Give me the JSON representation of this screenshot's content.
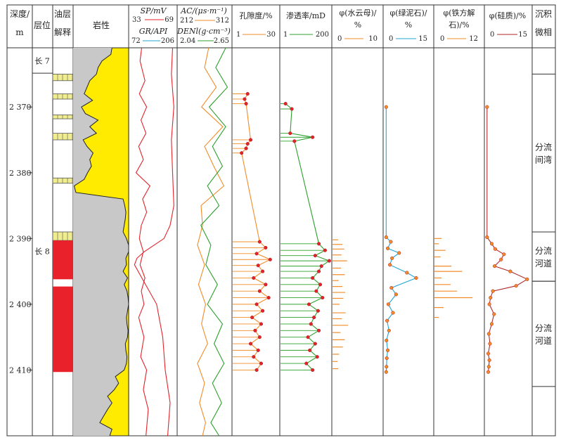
{
  "headers": {
    "depth": [
      "深度/",
      "m"
    ],
    "layer": "层位",
    "oil": [
      "油层",
      "解释"
    ],
    "lith": "岩性",
    "sp_title": "SP/mV",
    "sp_min": "33",
    "sp_max": "69",
    "gr_title": "GR/API",
    "gr_min": "72",
    "gr_max": "206",
    "ac_title": "AC/(μs·m⁻¹)",
    "ac_min": "212",
    "ac_max": "312",
    "den_title": "DENl(g·cm⁻³)",
    "den_min": "2.04",
    "den_max": "2.65",
    "por_title": "孔隙度/%",
    "por_min": "1",
    "por_max": "30",
    "perm_title": "渗透率/mD",
    "perm_min": "1",
    "perm_max": "200",
    "bio_title": [
      "φ(水云母)/",
      "%"
    ],
    "bio_min": "0",
    "bio_max": "10",
    "chl_title": [
      "φ(绿泥石)/",
      "%"
    ],
    "chl_min": "0",
    "chl_max": "15",
    "cal_title": [
      "φ(铁方解",
      "石)/%"
    ],
    "cal_min": "0",
    "cal_max": "12",
    "sil_title": "φ(硅质)/%",
    "sil_min": "0",
    "sil_max": "15",
    "fac": [
      "沉积",
      "微相"
    ]
  },
  "layers": [
    {
      "name": "长 7",
      "top": 2362.0,
      "bottom": 2364.0
    },
    {
      "name": "长 8",
      "top": 2391.0,
      "bottom": 2420.0
    }
  ],
  "facies": [
    {
      "lines": [
        "分流",
        "间湾"
      ],
      "top": 2365.0,
      "bottom": 2389.0
    },
    {
      "lines": [
        "分流",
        "河道"
      ],
      "top": 2389.0,
      "bottom": 2396.5
    },
    {
      "lines": [
        "分流",
        "河道"
      ],
      "top": 2396.5,
      "bottom": 2412.5
    }
  ],
  "colors": {
    "sp": "#e2232b",
    "gr": "#22a6d6",
    "ac": "#f28c28",
    "den": "#2ca02c",
    "por": "#f28c28",
    "perm": "#2ca02c",
    "bio": "#f28c28",
    "chl": "#22a6d6",
    "cal": "#f28c28",
    "sil": "#b02a2a",
    "sand": "#ffeb00",
    "shale": "#c8c8c8",
    "oil_red": "#e8212a",
    "oil_yellow": "#f0ec90",
    "dot": "#e2232b"
  },
  "chart_data": {
    "type": "well-log",
    "depth_axis": {
      "label": "深度/m",
      "range": [
        2361,
        2420
      ],
      "ticks": [
        2370,
        2380,
        2390,
        2400,
        2410
      ],
      "tick_labels": [
        "2 370",
        "2 380",
        "2 390",
        "2 400",
        "2 410"
      ]
    },
    "oil_intervals": [
      {
        "type": "yellow",
        "top": 2365.0,
        "bottom": 2366.0
      },
      {
        "type": "yellow",
        "top": 2368.0,
        "bottom": 2368.8
      },
      {
        "type": "yellow",
        "top": 2371.2,
        "bottom": 2371.8
      },
      {
        "type": "yellow",
        "top": 2374.0,
        "bottom": 2375.0
      },
      {
        "type": "yellow",
        "top": 2380.8,
        "bottom": 2381.6
      },
      {
        "type": "yellow",
        "top": 2389.0,
        "bottom": 2390.3
      },
      {
        "type": "red",
        "top": 2390.3,
        "bottom": 2396.2
      },
      {
        "type": "red",
        "top": 2397.3,
        "bottom": 2410.3
      }
    ],
    "lithology": {
      "depth": [
        2361,
        2362,
        2363,
        2364,
        2365,
        2366,
        2367,
        2368,
        2369,
        2370,
        2371,
        2372,
        2373,
        2374,
        2375,
        2376,
        2377,
        2378,
        2379,
        2380,
        2381,
        2382,
        2383,
        2384,
        2385,
        2386,
        2387,
        2388,
        2389,
        2390,
        2391,
        2392,
        2393,
        2394,
        2395,
        2396,
        2397,
        2398,
        2399,
        2400,
        2401,
        2402,
        2403,
        2404,
        2405,
        2406,
        2407,
        2408,
        2409,
        2410,
        2411,
        2412,
        2413,
        2414,
        2415,
        2416,
        2417,
        2418,
        2419,
        2420
      ],
      "sand_fraction": [
        0.7,
        0.68,
        0.52,
        0.45,
        0.42,
        0.3,
        0.25,
        0.2,
        0.35,
        0.15,
        0.22,
        0.45,
        0.3,
        0.42,
        0.18,
        0.25,
        0.36,
        0.3,
        0.33,
        0.26,
        0.2,
        0.02,
        0.05,
        0.9,
        0.93,
        0.95,
        0.94,
        0.92,
        0.9,
        0.96,
        1.0,
        1.0,
        0.95,
        0.96,
        0.9,
        0.98,
        0.92,
        0.97,
        0.99,
        1.0,
        0.98,
        0.96,
        0.97,
        0.99,
        0.98,
        0.94,
        0.95,
        0.97,
        0.96,
        0.92,
        0.76,
        0.82,
        0.74,
        0.62,
        0.7,
        0.62,
        0.55,
        0.48,
        0.7,
        0.66
      ]
    },
    "curves": [
      {
        "name": "SP",
        "unit": "mV",
        "range": [
          33,
          69
        ],
        "depth": [
          2361,
          2365,
          2370,
          2375,
          2380,
          2385,
          2388,
          2390,
          2391,
          2392,
          2393,
          2394,
          2396,
          2400,
          2405,
          2410,
          2415,
          2420
        ],
        "values": [
          67,
          66,
          68,
          66,
          67,
          68,
          65,
          60,
          52,
          44,
          38,
          36,
          42,
          54,
          59,
          61,
          65,
          63
        ]
      },
      {
        "name": "GR",
        "unit": "API",
        "range": [
          72,
          206
        ],
        "depth": [
          2361,
          2363,
          2366,
          2368,
          2370,
          2372,
          2374,
          2376,
          2378,
          2380,
          2382,
          2384,
          2386,
          2388,
          2390,
          2392,
          2394,
          2396,
          2398,
          2400,
          2402,
          2405,
          2408,
          2410,
          2413,
          2416,
          2420
        ],
        "values": [
          105,
          100,
          115,
          98,
          120,
          103,
          118,
          96,
          110,
          88,
          130,
          108,
          120,
          104,
          98,
          110,
          100,
          115,
          104,
          112,
          96,
          112,
          102,
          120,
          110,
          125,
          118
        ]
      },
      {
        "name": "AC",
        "unit": "μs·m⁻¹",
        "range": [
          212,
          312
        ],
        "depth": [
          2361,
          2364,
          2367,
          2370,
          2373,
          2376,
          2379,
          2382,
          2385,
          2388,
          2391,
          2394,
          2397,
          2400,
          2403,
          2406,
          2409,
          2412,
          2415,
          2418,
          2420
        ],
        "values": [
          270,
          262,
          285,
          256,
          298,
          262,
          280,
          300,
          255,
          258,
          248,
          262,
          250,
          264,
          256,
          268,
          248,
          262,
          252,
          264,
          258
        ]
      },
      {
        "name": "DEN",
        "unit": "g·cm⁻³",
        "range": [
          2.04,
          2.65
        ],
        "depth": [
          2361,
          2364,
          2367,
          2370,
          2373,
          2376,
          2379,
          2382,
          2385,
          2388,
          2391,
          2394,
          2397,
          2400,
          2403,
          2406,
          2409,
          2412,
          2415,
          2418,
          2420
        ],
        "values": [
          2.6,
          2.48,
          2.62,
          2.4,
          2.6,
          2.44,
          2.56,
          2.38,
          2.52,
          2.3,
          2.42,
          2.36,
          2.5,
          2.38,
          2.56,
          2.46,
          2.58,
          2.44,
          2.55,
          2.42,
          2.52
        ]
      },
      {
        "name": "孔隙度",
        "unit": "%",
        "range": [
          1,
          30
        ],
        "markers": true,
        "depth": [
          2368.0,
          2368.8,
          2369.5,
          2375.0,
          2375.6,
          2376.3,
          2377.0,
          2390.5,
          2391.4,
          2392.3,
          2393.2,
          2394.1,
          2395.0,
          2396.0,
          2397.0,
          2398.0,
          2399.0,
          2400.0,
          2401.0,
          2402.0,
          2403.0,
          2404.0,
          2405.0,
          2406.0,
          2407.0,
          2408.0,
          2409.0,
          2410.0
        ],
        "values": [
          10,
          8,
          9,
          12,
          10,
          9,
          6,
          18,
          22,
          16,
          25,
          17,
          20,
          14,
          22,
          18,
          24,
          16,
          20,
          13,
          19,
          15,
          18,
          12,
          17,
          14,
          19,
          16
        ]
      },
      {
        "name": "渗透率",
        "unit": "mD",
        "range": [
          1,
          200
        ],
        "log": true,
        "markers": true,
        "depth": [
          2369.5,
          2370.3,
          2374.0,
          2374.6,
          2375.2,
          2390.8,
          2391.8,
          2392.6,
          2393.4,
          2394.2,
          2395.0,
          2396.0,
          2397.0,
          2398.0,
          2399.0,
          2400.0,
          2401.0,
          2402.0,
          2403.0,
          2404.0,
          2405.0,
          2406.0,
          2407.0,
          2408.0,
          2409.0,
          2410.0
        ],
        "values": [
          1.5,
          3,
          2.5,
          30,
          4,
          60,
          120,
          40,
          190,
          80,
          60,
          30,
          70,
          45,
          90,
          20,
          55,
          35,
          25,
          60,
          18,
          40,
          22,
          50,
          15,
          30
        ]
      },
      {
        "name": "水云母",
        "unit": "%",
        "range": [
          0,
          10
        ],
        "bars": true,
        "depth": [
          2390.2,
          2390.9,
          2391.6,
          2392.5,
          2393.4,
          2394.5,
          2395.5,
          2396.4,
          2397.3,
          2398.2,
          2399.1,
          2400.0,
          2401.3,
          2402.2,
          2403.2,
          2404.3,
          2405.4,
          2406.5,
          2407.6,
          2408.7,
          2409.8
        ],
        "values": [
          0.9,
          1.8,
          2.2,
          1.6,
          2.8,
          1.5,
          2.3,
          1.0,
          1.8,
          2.4,
          2.0,
          1.2,
          2.5,
          1.7,
          3.0,
          1.4,
          2.3,
          1.9,
          1.1,
          0.8,
          0.9
        ]
      },
      {
        "name": "绿泥石",
        "unit": "%",
        "range": [
          0,
          15
        ],
        "markers": true,
        "depth": [
          2370,
          2389.8,
          2390.5,
          2391.5,
          2392.2,
          2393.0,
          2394.0,
          2395.2,
          2396.0,
          2397.5,
          2398.5,
          2400.0,
          2401.3,
          2402.5,
          2404.0,
          2405.5,
          2407.0,
          2408.2,
          2409.5,
          2410.3
        ],
        "values": [
          0.3,
          0.3,
          1.8,
          0.8,
          4.5,
          2.2,
          1.5,
          7.0,
          10.0,
          2.0,
          3.5,
          1.0,
          2.5,
          0.6,
          1.2,
          0.4,
          0.8,
          0.5,
          0.4,
          0.3
        ]
      },
      {
        "name": "铁方解石",
        "unit": "%",
        "range": [
          0,
          12
        ],
        "bars": true,
        "depth": [
          2390.0,
          2390.8,
          2391.8,
          2392.8,
          2394.2,
          2395.0,
          2396.0,
          2397.0,
          2398.0,
          2399.0,
          2400.5,
          2402.0
        ],
        "values": [
          1.5,
          0.8,
          2.5,
          1.2,
          4.0,
          6.8,
          1.5,
          3.8,
          5.5,
          9.5,
          2.0,
          0.8
        ]
      },
      {
        "name": "硅质",
        "unit": "%",
        "range": [
          0,
          15
        ],
        "markers": true,
        "depth": [
          2370,
          2389.8,
          2390.8,
          2391.6,
          2392.4,
          2393.2,
          2394.2,
          2395.0,
          2396.2,
          2397.2,
          2398.0,
          2399.0,
          2400.0,
          2401.5,
          2403.0,
          2404.5,
          2406.0,
          2407.5,
          2408.5,
          2409.5,
          2410.3
        ],
        "values": [
          0.2,
          0.2,
          1.8,
          3.0,
          6.0,
          5.0,
          2.8,
          8.2,
          14.0,
          10.2,
          2.2,
          1.4,
          1.0,
          2.6,
          1.8,
          0.8,
          1.2,
          0.6,
          1.0,
          0.8,
          0.6
        ]
      }
    ]
  }
}
